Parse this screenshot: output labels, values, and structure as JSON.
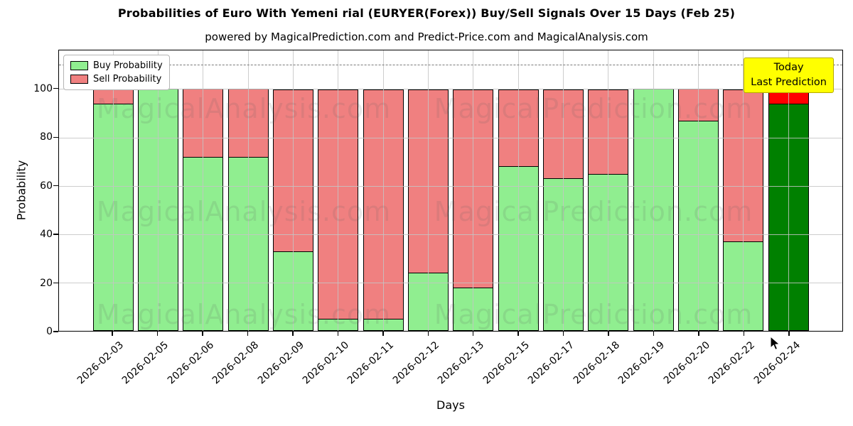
{
  "figure": {
    "title": "Probabilities of Euro With Yemeni rial (EURYER(Forex)) Buy/Sell Signals Over 15 Days (Feb 25)",
    "subtitle": "powered by MagicalPrediction.com and Predict-Price.com and MagicalAnalysis.com",
    "watermarks": [
      "MagicalAnalysis.com",
      "MagicalPrediction.com"
    ]
  },
  "chart_data": {
    "type": "bar",
    "stacked": true,
    "title": "Probabilities of Euro With Yemeni rial (EURYER(Forex)) Buy/Sell Signals Over 15 Days (Feb 25)",
    "xlabel": "Days",
    "ylabel": "Probability",
    "ylim": [
      0,
      116
    ],
    "yticks": [
      0,
      20,
      40,
      60,
      80,
      100
    ],
    "dashed_line_y": 110,
    "grid": true,
    "categories": [
      "2026-02-03",
      "2026-02-05",
      "2026-02-06",
      "2026-02-08",
      "2026-02-09",
      "2026-02-10",
      "2026-02-11",
      "2026-02-12",
      "2026-02-13",
      "2026-02-15",
      "2026-02-17",
      "2026-02-18",
      "2026-02-19",
      "2026-02-20",
      "2026-02-22",
      "2026-02-24"
    ],
    "series": [
      {
        "name": "Buy Probability",
        "values": [
          94,
          100,
          72,
          72,
          33,
          5,
          5,
          24,
          18,
          68,
          63,
          65,
          100,
          87,
          37,
          94
        ]
      },
      {
        "name": "Sell Probability",
        "values": [
          6,
          0,
          28,
          28,
          67,
          95,
          95,
          76,
          82,
          32,
          37,
          35,
          0,
          13,
          63,
          6
        ]
      }
    ],
    "legend": {
      "position": "upper left",
      "entries": [
        {
          "label": "Buy Probability",
          "color": "#90ee90"
        },
        {
          "label": "Sell Probability",
          "color": "#f08080"
        }
      ]
    },
    "colors": {
      "buy": "#90ee90",
      "sell": "#f08080",
      "last_bar_buy": "#008000",
      "last_bar_sell": "#ff0000",
      "edge": "#000000",
      "grid": "#c4c4c4",
      "dashed_line": "#7a7a7a",
      "annotation_bg": "#ffff00",
      "annotation_border": "#b5a900"
    },
    "annotation": {
      "lines": [
        "Today",
        "Last Prediction"
      ]
    }
  }
}
